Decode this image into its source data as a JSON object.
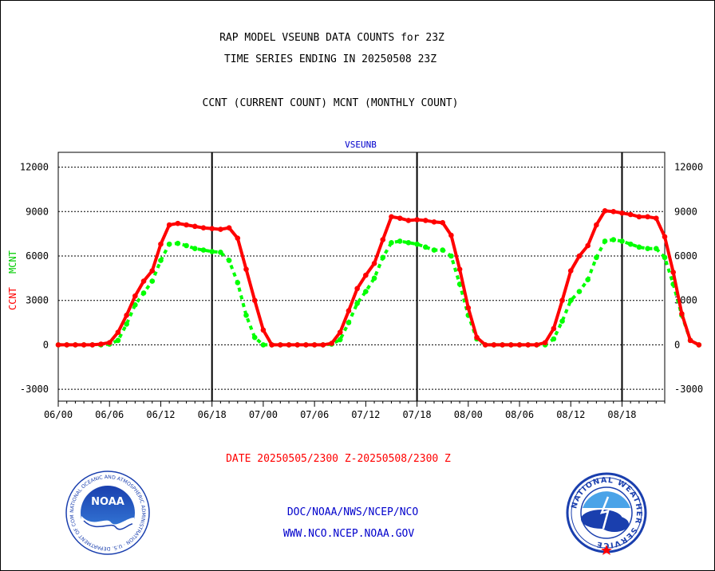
{
  "chart_data": {
    "type": "line",
    "title_lines": [
      "RAP MODEL VSEUNB DATA COUNTS for 23Z",
      "TIME SERIES ENDING IN 20250508 23Z"
    ],
    "subtitle": "CCNT (CURRENT COUNT) MCNT (MONTHLY COUNT)",
    "plot_label": "VSEUNB",
    "ylabel_ccnt": "CCNT",
    "ylabel_mcnt": "MCNT",
    "date_range": "DATE 20250505/2300 Z-20250508/2300 Z",
    "ylim": [
      -3800,
      13000
    ],
    "yticks": [
      -3000,
      0,
      3000,
      6000,
      9000,
      12000
    ],
    "ytick_labels": [
      "-3000",
      "0",
      "3000",
      "6000",
      "9000",
      "12000"
    ],
    "xlim": [
      0,
      71
    ],
    "xticks": [
      0,
      6,
      12,
      18,
      24,
      30,
      36,
      42,
      48,
      54,
      60,
      66
    ],
    "xtick_labels": [
      "06/00",
      "06/06",
      "06/12",
      "06/18",
      "07/00",
      "07/06",
      "07/12",
      "07/18",
      "08/00",
      "08/06",
      "08/12",
      "08/18"
    ],
    "day_separators": [
      18,
      42,
      66
    ],
    "grid": true,
    "series": [
      {
        "name": "CCNT",
        "color": "#ff0000",
        "values": [
          0,
          0,
          0,
          0,
          0,
          50,
          150,
          850,
          2000,
          3300,
          4300,
          5000,
          6800,
          8100,
          8200,
          8100,
          8000,
          7900,
          7850,
          7800,
          7900,
          7200,
          5100,
          3000,
          1000,
          0,
          0,
          0,
          0,
          0,
          0,
          0,
          100,
          850,
          2300,
          3800,
          4700,
          5500,
          7100,
          8650,
          8550,
          8400,
          8450,
          8400,
          8300,
          8250,
          7400,
          5100,
          2500,
          500,
          0,
          0,
          0,
          0,
          0,
          0,
          0,
          150,
          1100,
          3000,
          5000,
          6000,
          6700,
          8100,
          9050,
          9000,
          8900,
          8800,
          8650,
          8650,
          8550,
          7300,
          4900,
          2100,
          300,
          0
        ]
      },
      {
        "name": "MCNT",
        "color": "#00ff00",
        "values": [
          0,
          0,
          0,
          0,
          0,
          0,
          50,
          300,
          1400,
          2700,
          3500,
          4300,
          5700,
          6800,
          6850,
          6700,
          6500,
          6400,
          6300,
          6250,
          5700,
          4200,
          2000,
          500,
          0,
          0,
          0,
          0,
          0,
          0,
          0,
          0,
          50,
          350,
          1500,
          2800,
          3600,
          4500,
          5900,
          6900,
          7000,
          6900,
          6800,
          6600,
          6400,
          6400,
          6000,
          4100,
          2000,
          400,
          0,
          0,
          0,
          0,
          0,
          0,
          0,
          0,
          400,
          1600,
          3000,
          3600,
          4400,
          5900,
          7000,
          7100,
          7000,
          6800,
          6600,
          6500,
          6500,
          5900,
          4100,
          2000,
          300,
          0
        ]
      }
    ]
  },
  "footer": {
    "line1": "DOC/NOAA/NWS/NCEP/NCO",
    "line2": "WWW.NCO.NCEP.NOAA.GOV"
  },
  "logos": {
    "noaa_text": "NOAA",
    "noaa_seal_text": "NATIONAL OCEANIC AND ATMOSPHERIC ADMINISTRATION · U.S. DEPARTMENT OF COMMERCE ·",
    "nws_seal_text": "NATIONAL WEATHER SERVICE"
  },
  "colors": {
    "title": "#000000",
    "plot_label": "#0000cc",
    "date_range": "#ff0000",
    "footer": "#0000cc",
    "ccnt_label": "#ff0000",
    "mcnt_label": "#00cc00"
  }
}
